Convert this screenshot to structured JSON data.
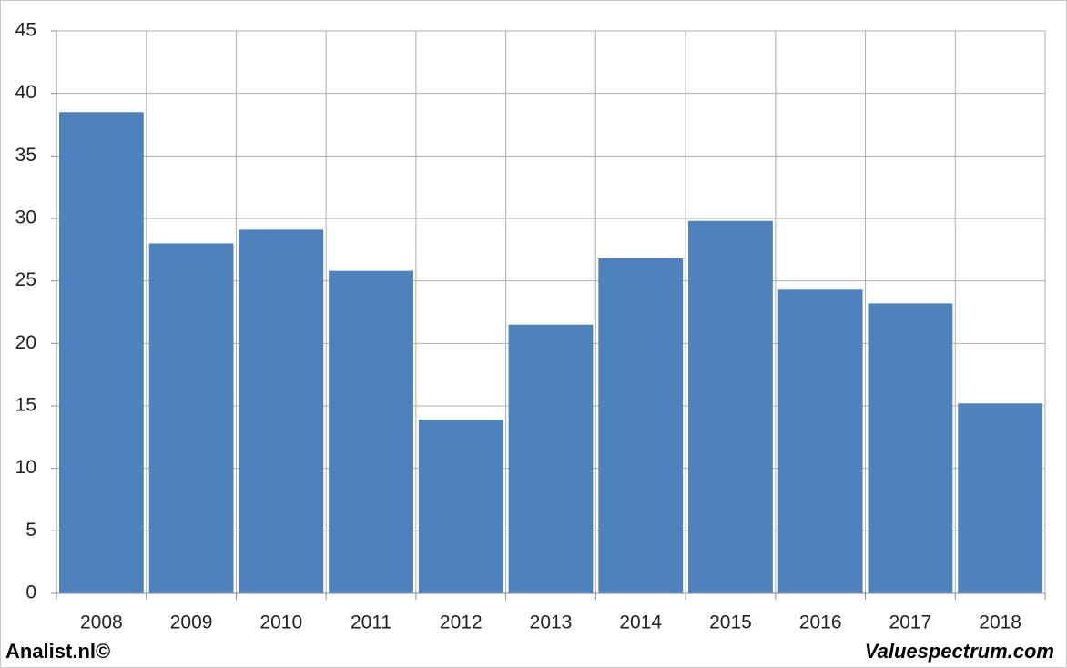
{
  "chart_data": {
    "type": "bar",
    "categories": [
      "2008",
      "2009",
      "2010",
      "2011",
      "2012",
      "2013",
      "2014",
      "2015",
      "2016",
      "2017",
      "2018"
    ],
    "values": [
      38.5,
      28,
      29.1,
      25.8,
      13.9,
      21.5,
      26.8,
      29.8,
      24.3,
      23.2,
      15.2
    ],
    "color": "#4f81bd",
    "ylim": [
      0,
      45
    ],
    "yticks": [
      0,
      5,
      10,
      15,
      20,
      25,
      30,
      35,
      40,
      45
    ],
    "grid": true
  },
  "footer": {
    "left": "Analist.nl©",
    "right": "Valuespectrum.com"
  }
}
